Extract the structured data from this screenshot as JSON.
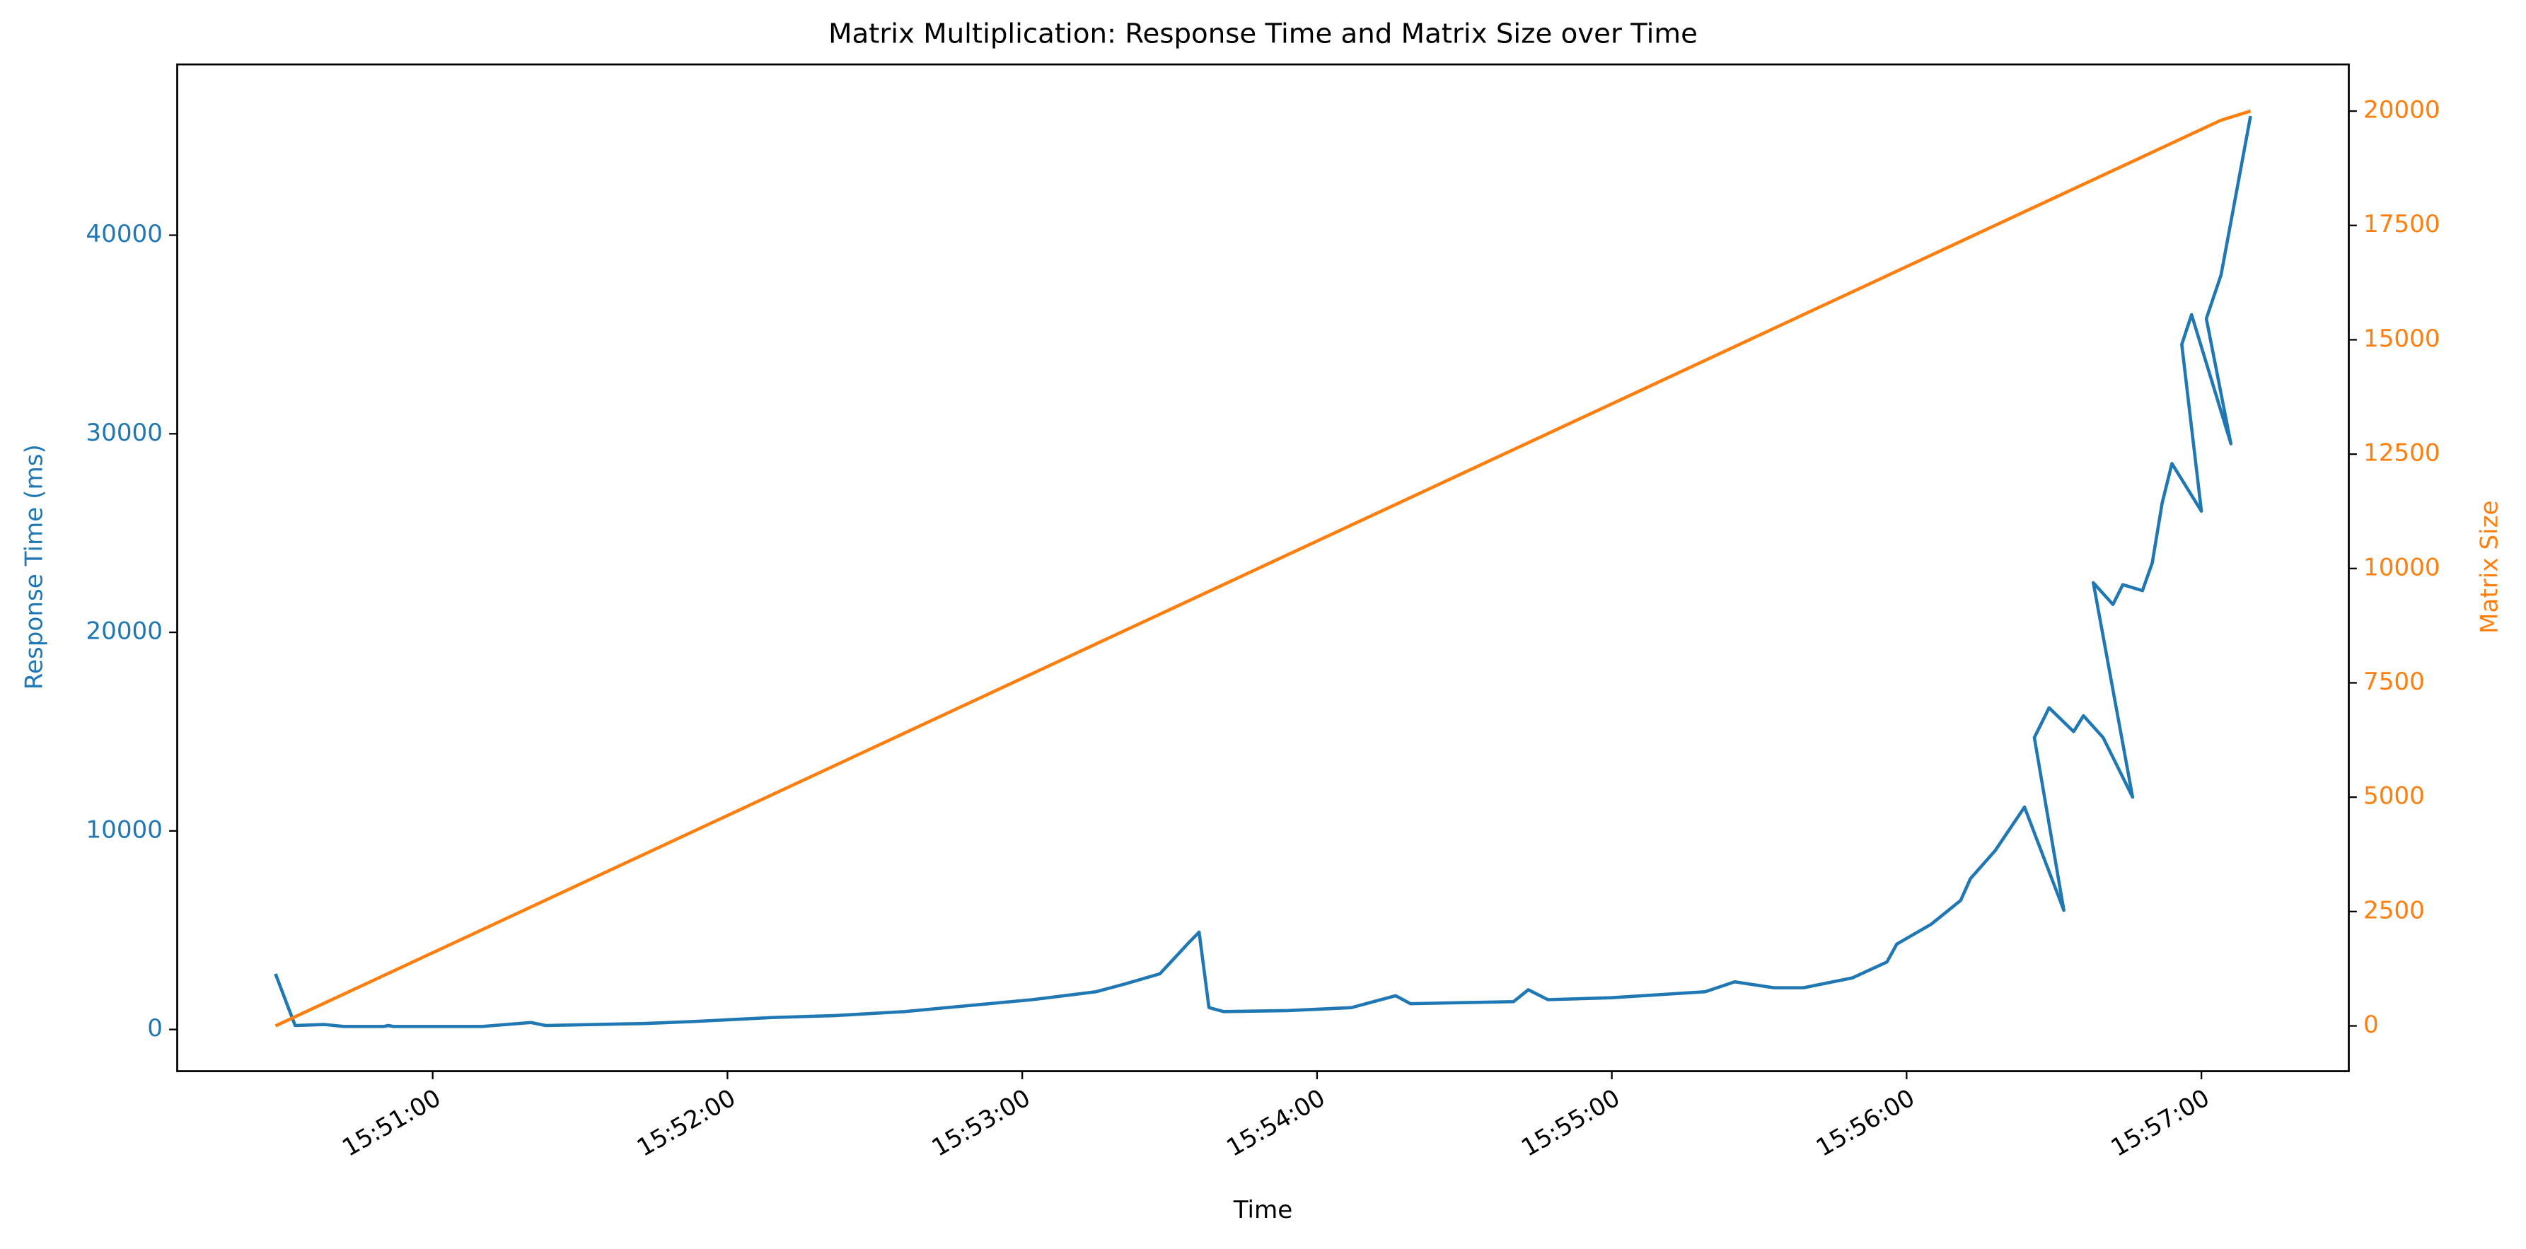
{
  "chart_data": {
    "type": "line",
    "title": "Matrix Multiplication: Response Time and Matrix Size over Time",
    "xlabel": "Time",
    "ylabel": "Response Time (ms)",
    "y2label": "Matrix Size",
    "xlim": [
      "15:50:08",
      "15:57:30"
    ],
    "xticks": [
      "15:51:00",
      "15:52:00",
      "15:53:00",
      "15:54:00",
      "15:55:00",
      "15:56:00",
      "15:57:00"
    ],
    "ylim": [
      -2100,
      48600
    ],
    "yticks": [
      0,
      10000,
      20000,
      30000,
      40000
    ],
    "y2lim": [
      -990,
      21020
    ],
    "y2ticks": [
      0,
      2500,
      5000,
      7500,
      10000,
      12500,
      15000,
      17500,
      20000
    ],
    "grid": false,
    "series": [
      {
        "name": "Response Time (ms)",
        "color": "#1f77b4",
        "axis": "y",
        "x": [
          "15:50:28",
          "15:50:32",
          "15:50:38",
          "15:50:42",
          "15:50:50",
          "15:50:51",
          "15:50:52",
          "15:51:10",
          "15:51:20",
          "15:51:23",
          "15:51:43",
          "15:51:53",
          "15:52:09",
          "15:52:22",
          "15:52:36",
          "15:52:49",
          "15:53:02",
          "15:53:15",
          "15:53:21",
          "15:53:28",
          "15:53:34",
          "15:53:36",
          "15:53:38",
          "15:53:41",
          "15:53:54",
          "15:54:07",
          "15:54:16",
          "15:54:19",
          "15:54:40",
          "15:54:43",
          "15:54:47",
          "15:55:00",
          "15:55:19",
          "15:55:25",
          "15:55:33",
          "15:55:39",
          "15:55:49",
          "15:55:56",
          "15:55:58",
          "15:56:05",
          "15:56:11",
          "15:56:13",
          "15:56:18",
          "15:56:24",
          "15:56:32",
          "15:56:26",
          "15:56:29",
          "15:56:34",
          "15:56:36",
          "15:56:40",
          "15:56:46",
          "15:56:38",
          "15:56:42",
          "15:56:44",
          "15:56:48",
          "15:56:50",
          "15:56:52",
          "15:56:54",
          "15:57:00",
          "15:56:56",
          "15:56:58",
          "15:57:06",
          "15:57:01",
          "15:57:04",
          "15:57:10"
        ],
        "values": [
          2800,
          200,
          250,
          150,
          150,
          200,
          150,
          150,
          350,
          200,
          300,
          400,
          600,
          700,
          900,
          1200,
          1500,
          1900,
          2300,
          2800,
          4400,
          4900,
          1100,
          900,
          950,
          1100,
          1700,
          1300,
          1400,
          2000,
          1500,
          1600,
          1900,
          2400,
          2100,
          2100,
          2600,
          3400,
          4300,
          5300,
          6500,
          7600,
          9000,
          11200,
          6000,
          14700,
          16200,
          15000,
          15800,
          14700,
          11700,
          22500,
          21400,
          22400,
          22100,
          23500,
          26500,
          28500,
          26100,
          34500,
          36000,
          29500,
          35800,
          38000,
          46000
        ]
      },
      {
        "name": "Matrix Size",
        "color": "#ff7f0e",
        "axis": "y2",
        "x": [
          "15:50:28",
          "15:57:04",
          "15:57:10"
        ],
        "values": [
          0,
          19800,
          20000
        ]
      }
    ]
  }
}
